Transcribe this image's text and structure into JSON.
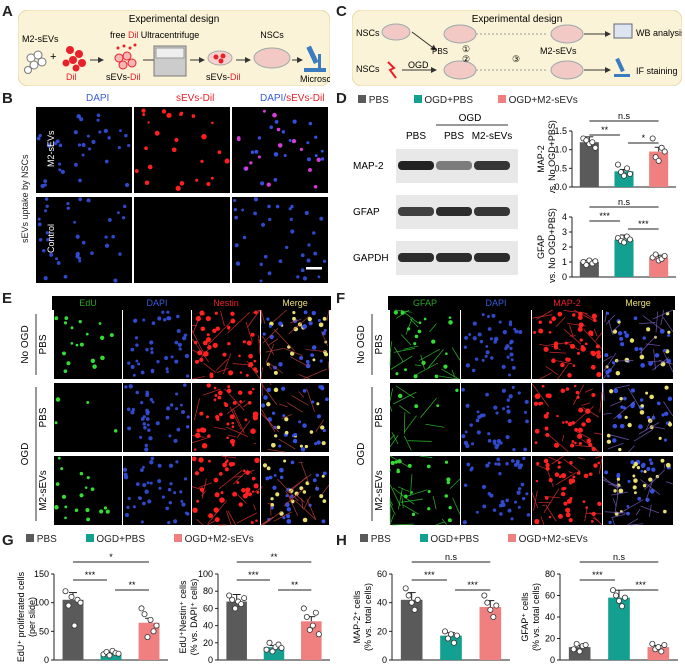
{
  "panel_letters": {
    "a": "A",
    "b": "B",
    "c": "C",
    "d": "D",
    "e": "E",
    "f": "F",
    "g": "G",
    "h": "H"
  },
  "panelA": {
    "title": "Experimental design",
    "m2sevs": "M2-sEVs",
    "plus": "+",
    "dil": "Dil",
    "free_dil": "free Dil",
    "sevs_dil": "sEVs-Dil",
    "ultracentrifuge": "Ultracentrifuge",
    "sevs_dil2": "sEVs-Dil",
    "nscs": "NSCs",
    "microscope": "Microscope"
  },
  "panelB": {
    "side_label": "sEVs uptake by NSCs",
    "col_dapi": "DAPI",
    "col_sevs": "sEVs-Dil",
    "col_merge_a": "DAPI/",
    "col_merge_b": "sEVs-Dil",
    "row1": "M2-sEVs",
    "row2": "Control"
  },
  "panelC": {
    "title": "Experimental design",
    "nscs1": "NSCs",
    "nscs2": "NSCs",
    "ogd": "OGD",
    "pbs": "PBS",
    "m2sevs": "M2-sEVs",
    "step1": "①",
    "step2": "②",
    "step3": "③",
    "wb": "WB analysis",
    "if": "IF staining"
  },
  "legend": {
    "pbs": "PBS",
    "ogd_pbs": "OGD+PBS",
    "ogd_m2": "OGD+M2-sEVs"
  },
  "colors": {
    "pbs": "#5a5a5a",
    "ogd_pbs": "#14a090",
    "ogd_m2": "#f08080",
    "red": "#e8202a",
    "blue": "#3b5bdb",
    "green": "#2aa52a"
  },
  "panelD": {
    "ogd": "OGD",
    "lanes": [
      "PBS",
      "PBS",
      "M2-sEVs"
    ],
    "proteins": [
      "MAP-2",
      "GFAP",
      "GAPDH"
    ]
  },
  "panelE": {
    "cols": [
      "EdU",
      "DAPI",
      "Nestin",
      "Merge"
    ],
    "rows": [
      "PBS",
      "PBS",
      "M2-sEVs"
    ],
    "group_top": "No OGD",
    "group_bottom": "OGD"
  },
  "panelF": {
    "cols": [
      "GFAP",
      "DAPI",
      "MAP-2",
      "Merge"
    ],
    "rows": [
      "PBS",
      "PBS",
      "M2-sEVs"
    ],
    "group_top": "No OGD",
    "group_bottom": "OGD"
  },
  "chart_data": [
    {
      "id": "D-map2",
      "type": "bar",
      "categories": [
        "PBS",
        "OGD+PBS",
        "OGD+M2-sEVs"
      ],
      "values": [
        1.2,
        0.42,
        0.95
      ],
      "points": [
        [
          1.3,
          1.25,
          1.15,
          1.2,
          1.05
        ],
        [
          0.6,
          0.4,
          0.3,
          0.5,
          0.35
        ],
        [
          1.3,
          0.8,
          0.7,
          1.05,
          0.95
        ]
      ],
      "ylabel_a": "MAP-2",
      "ylabel_b": "(vs. No OGD+PBS)",
      "ylim": [
        0,
        1.5
      ],
      "yticks": [
        "0.0",
        "0.5",
        "1.0",
        "1.5"
      ],
      "sig": [
        {
          "a": 0,
          "b": 1,
          "t": "**"
        },
        {
          "a": 1,
          "b": 2,
          "t": "*"
        },
        {
          "a": 0,
          "b": 2,
          "t": "n.s"
        }
      ]
    },
    {
      "id": "D-gfap",
      "type": "bar",
      "categories": [
        "PBS",
        "OGD+PBS",
        "OGD+M2-sEVs"
      ],
      "values": [
        1.0,
        2.5,
        1.3
      ],
      "points": [
        [
          1.0,
          0.8,
          1.1,
          0.9,
          1.05
        ],
        [
          2.6,
          2.4,
          2.3,
          2.7,
          2.5
        ],
        [
          1.3,
          1.5,
          1.1,
          1.2,
          1.4
        ]
      ],
      "ylabel_a": "GFAP",
      "ylabel_b": "(vs. No OGD+PBS)",
      "ylim": [
        0,
        4
      ],
      "yticks": [
        "0",
        "1",
        "2",
        "3",
        "4"
      ],
      "sig": [
        {
          "a": 0,
          "b": 1,
          "t": "***"
        },
        {
          "a": 1,
          "b": 2,
          "t": "***"
        },
        {
          "a": 0,
          "b": 2,
          "t": "n.s"
        }
      ]
    },
    {
      "id": "G-edu",
      "type": "bar",
      "categories": [
        "PBS",
        "OGD+PBS",
        "OGD+M2-sEVs"
      ],
      "values": [
        105,
        12,
        65
      ],
      "points": [
        [
          120,
          95,
          110,
          60,
          105,
          100
        ],
        [
          10,
          14,
          8,
          16,
          12,
          11
        ],
        [
          90,
          80,
          40,
          70,
          50,
          60
        ]
      ],
      "ylabel_a": "EdU⁺ proliferated cells",
      "ylabel_b": "(per slide)",
      "ylim": [
        0,
        150
      ],
      "yticks": [
        "0",
        "50",
        "100",
        "150"
      ],
      "sig": [
        {
          "a": 0,
          "b": 1,
          "t": "***"
        },
        {
          "a": 1,
          "b": 2,
          "t": "**"
        },
        {
          "a": 0,
          "b": 2,
          "t": "*"
        }
      ]
    },
    {
      "id": "G-nestin",
      "type": "bar",
      "categories": [
        "PBS",
        "OGD+PBS",
        "OGD+M2-sEVs"
      ],
      "values": [
        68,
        15,
        45
      ],
      "points": [
        [
          75,
          70,
          60,
          68,
          65,
          72
        ],
        [
          12,
          20,
          10,
          15,
          18,
          14
        ],
        [
          60,
          50,
          35,
          40,
          55,
          30
        ]
      ],
      "ylabel_a": "EdU⁺Nestin⁺ cells",
      "ylabel_b": "(% vs. DAPI⁺ cells)",
      "ylim": [
        0,
        100
      ],
      "yticks": [
        "0",
        "20",
        "40",
        "60",
        "80",
        "100"
      ],
      "sig": [
        {
          "a": 0,
          "b": 1,
          "t": "***"
        },
        {
          "a": 1,
          "b": 2,
          "t": "**"
        },
        {
          "a": 0,
          "b": 2,
          "t": "**"
        }
      ]
    },
    {
      "id": "H-map2",
      "type": "bar",
      "categories": [
        "PBS",
        "OGD+PBS",
        "OGD+M2-sEVs"
      ],
      "values": [
        42,
        17,
        37
      ],
      "points": [
        [
          50,
          45,
          40,
          35,
          42
        ],
        [
          20,
          15,
          18,
          12,
          17
        ],
        [
          45,
          40,
          35,
          30,
          38
        ]
      ],
      "ylabel_a": "MAP-2⁺ cells",
      "ylabel_b": "(% vs. total cells)",
      "ylim": [
        0,
        60
      ],
      "yticks": [
        "0",
        "20",
        "40",
        "60"
      ],
      "sig": [
        {
          "a": 0,
          "b": 1,
          "t": "***"
        },
        {
          "a": 1,
          "b": 2,
          "t": "***"
        },
        {
          "a": 0,
          "b": 2,
          "t": "n.s"
        }
      ]
    },
    {
      "id": "H-gfap",
      "type": "bar",
      "categories": [
        "PBS",
        "OGD+PBS",
        "OGD+M2-sEVs"
      ],
      "values": [
        12,
        58,
        12
      ],
      "points": [
        [
          10,
          15,
          8,
          13,
          14
        ],
        [
          65,
          60,
          55,
          50,
          58
        ],
        [
          15,
          10,
          12,
          8,
          14
        ]
      ],
      "ylabel_a": "GFAP⁺ cells",
      "ylabel_b": "(% vs. total cells)",
      "ylim": [
        0,
        80
      ],
      "yticks": [
        "0",
        "20",
        "40",
        "60",
        "80"
      ],
      "sig": [
        {
          "a": 0,
          "b": 1,
          "t": "***"
        },
        {
          "a": 1,
          "b": 2,
          "t": "***"
        },
        {
          "a": 0,
          "b": 2,
          "t": "n.s"
        }
      ]
    }
  ]
}
